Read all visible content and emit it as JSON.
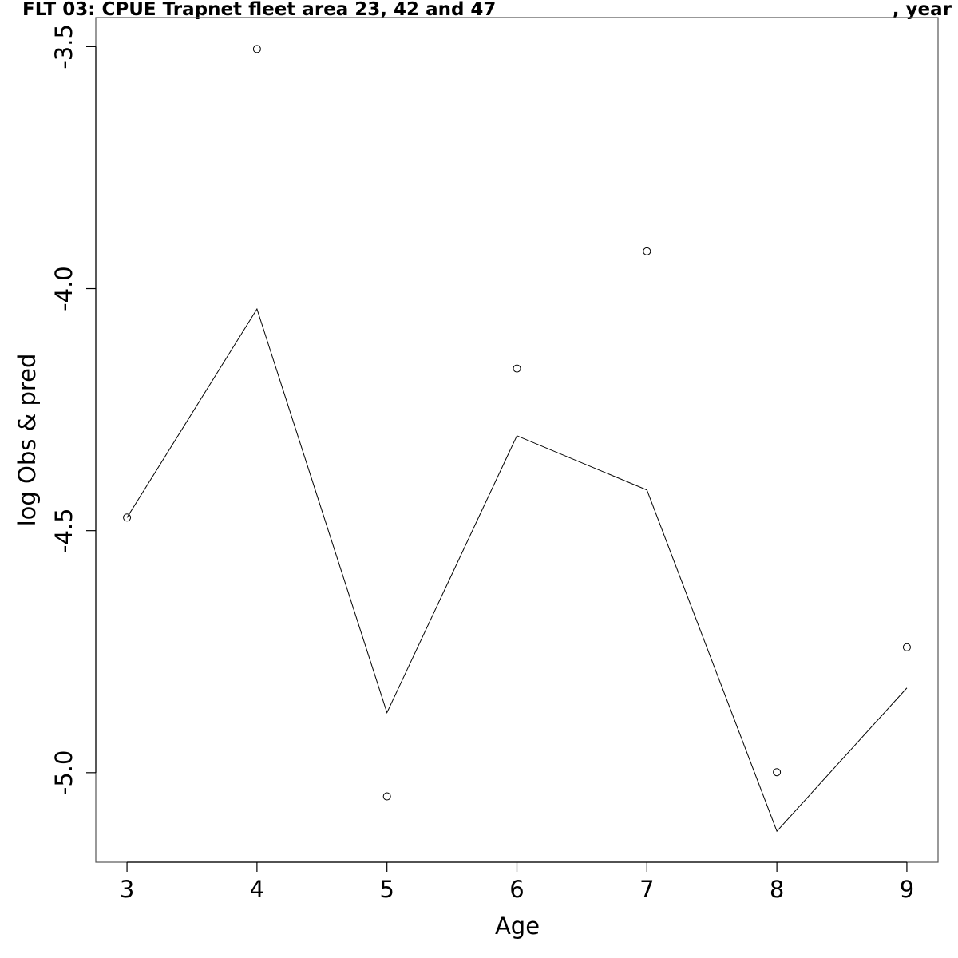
{
  "chart_data": {
    "type": "line",
    "title": "FLT 03: CPUE Trapnet fleet area 23, 42 and 47",
    "title_suffix": ", year",
    "xlabel": "Age",
    "ylabel": "log Obs & pred",
    "xlim": [
      2.76,
      9.24
    ],
    "ylim": [
      -5.185,
      -3.44
    ],
    "x_ticks": [
      3,
      4,
      5,
      6,
      7,
      8,
      9
    ],
    "x_tick_labels": [
      "3",
      "4",
      "5",
      "6",
      "7",
      "8",
      "9"
    ],
    "y_ticks": [
      -3.5,
      -4.0,
      -4.5,
      -5.0
    ],
    "y_tick_labels": [
      "-3.5",
      "-4.0",
      "-4.5",
      "-5.0"
    ],
    "grid": false,
    "series": [
      {
        "style": "points",
        "x": [
          3,
          4,
          5,
          6,
          7,
          8,
          9
        ],
        "y": [
          -4.473,
          -3.505,
          -5.049,
          -4.165,
          -3.923,
          -4.999,
          -4.741
        ]
      },
      {
        "style": "line",
        "x": [
          3,
          4,
          5,
          6,
          7,
          8,
          9
        ],
        "y": [
          -4.473,
          -4.042,
          -4.876,
          -4.304,
          -4.416,
          -5.121,
          -4.825
        ]
      }
    ]
  }
}
